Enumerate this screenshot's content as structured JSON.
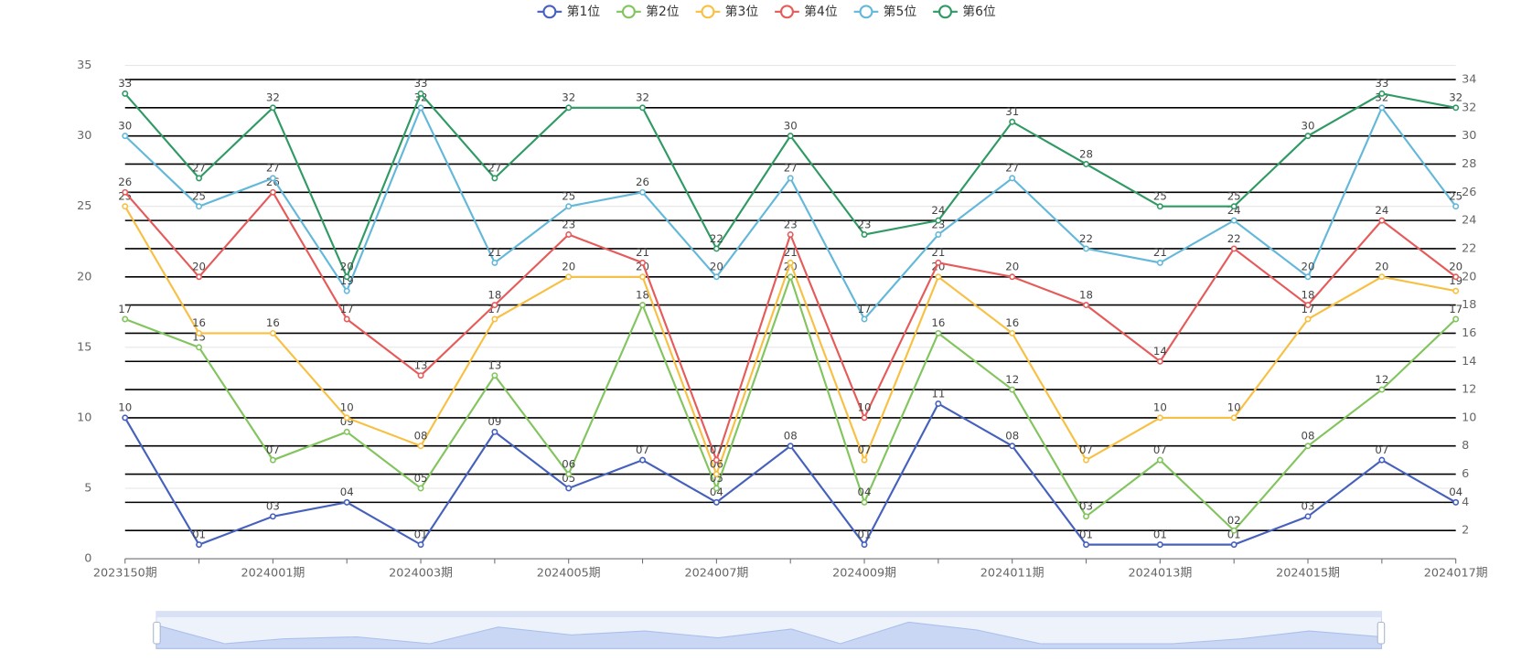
{
  "chart_data": {
    "type": "line",
    "categories": [
      "2023150期",
      null,
      "2024001期",
      null,
      "2024003期",
      null,
      "2024005期",
      null,
      "2024007期",
      null,
      "2024009期",
      null,
      "2024011期",
      null,
      "2024013期",
      null,
      "2024015期",
      null,
      "2024017期"
    ],
    "series": [
      {
        "name": "第1位",
        "color": "#4561bd",
        "values": [
          10,
          1,
          3,
          4,
          1,
          9,
          5,
          7,
          4,
          8,
          1,
          11,
          8,
          1,
          1,
          1,
          3,
          7,
          4
        ],
        "value_labels": [
          "10",
          "01",
          "03",
          "04",
          "01",
          "09",
          "05",
          "07",
          "04",
          "08",
          "01",
          "11",
          "08",
          "01",
          "01",
          "01",
          "03",
          "07",
          "04"
        ]
      },
      {
        "name": "第2位",
        "color": "#82c45e",
        "values": [
          17,
          15,
          7,
          9,
          5,
          13,
          6,
          18,
          5,
          20,
          4,
          16,
          12,
          3,
          7,
          2,
          8,
          12,
          17
        ],
        "value_labels": [
          "17",
          "15",
          "07",
          "09",
          "05",
          "13",
          "06",
          "18",
          "05",
          "20",
          "04",
          "16",
          "12",
          "03",
          "07",
          "02",
          "08",
          "12",
          "17"
        ]
      },
      {
        "name": "第3位",
        "color": "#f8c043",
        "values": [
          25,
          16,
          16,
          10,
          8,
          17,
          20,
          20,
          6,
          21,
          7,
          20,
          16,
          7,
          10,
          10,
          17,
          20,
          19
        ],
        "value_labels": [
          "25",
          "16",
          "16",
          "10",
          "08",
          "17",
          "20",
          "20",
          "06",
          "21",
          "07",
          "20",
          "16",
          "07",
          "10",
          "10",
          "17",
          "20",
          "19"
        ]
      },
      {
        "name": "第4位",
        "color": "#e65a5a",
        "values": [
          26,
          20,
          26,
          17,
          13,
          18,
          23,
          21,
          7,
          23,
          10,
          21,
          20,
          18,
          14,
          22,
          18,
          24,
          20
        ],
        "value_labels": [
          "26",
          "20",
          "26",
          "17",
          "13",
          "18",
          "23",
          "21",
          "07",
          "23",
          "10",
          "21",
          "20",
          "18",
          "14",
          "22",
          "18",
          "24",
          "20"
        ]
      },
      {
        "name": "第5位",
        "color": "#63b8da",
        "values": [
          30,
          25,
          27,
          19,
          32,
          21,
          25,
          26,
          20,
          27,
          17,
          23,
          27,
          22,
          21,
          24,
          20,
          32,
          25
        ],
        "value_labels": [
          "30",
          "25",
          "27",
          "19",
          "32",
          "21",
          "25",
          "26",
          "20",
          "27",
          "17",
          "23",
          "27",
          "22",
          "21",
          "24",
          "20",
          "32",
          "25"
        ]
      },
      {
        "name": "第6位",
        "color": "#2f9a63",
        "values": [
          33,
          27,
          32,
          20,
          33,
          27,
          32,
          32,
          22,
          30,
          23,
          24,
          31,
          28,
          25,
          25,
          30,
          33,
          32
        ],
        "value_labels": [
          "33",
          "27",
          "32",
          "20",
          "33",
          "27",
          "32",
          "32",
          "22",
          "30",
          "23",
          "24",
          "31",
          "28",
          "25",
          "25",
          "30",
          "33",
          "32"
        ]
      }
    ],
    "ylim": [
      0,
      35
    ],
    "yticks": [
      0,
      5,
      10,
      15,
      20,
      25,
      30,
      35
    ],
    "y2lim": [
      0,
      35
    ],
    "y2ticks": [
      2,
      4,
      6,
      8,
      10,
      12,
      14,
      16,
      18,
      20,
      22,
      24,
      26,
      28,
      30,
      32,
      34
    ],
    "grid": true,
    "legend": "top"
  }
}
